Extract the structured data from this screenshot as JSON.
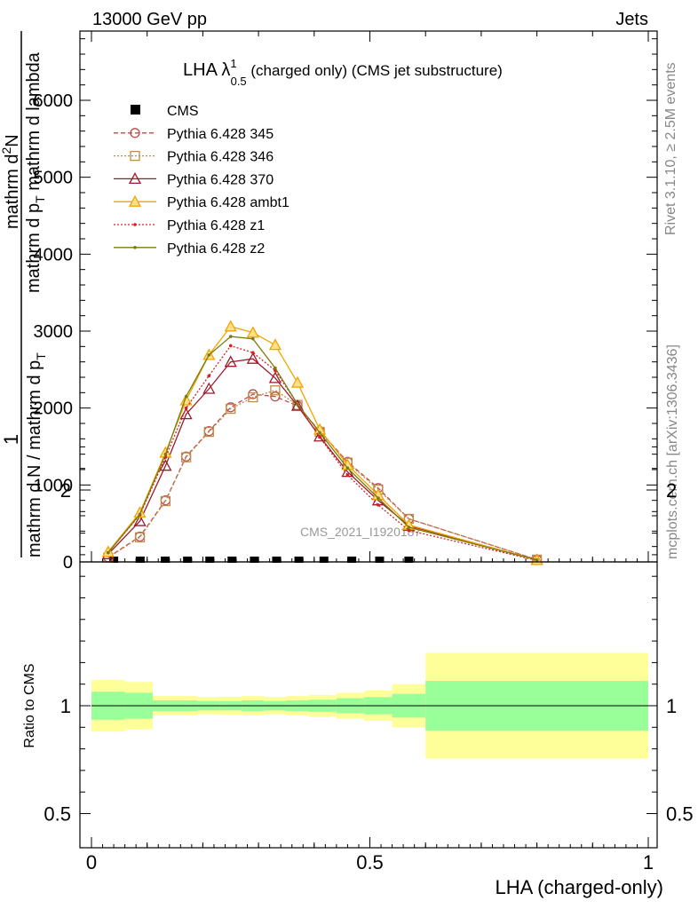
{
  "header": {
    "energy_label": "13000 GeV pp",
    "process_label": "Jets"
  },
  "side_labels": {
    "rivet": "Rivet 3.1.10, ≥ 2.5M events",
    "mcplots": "mcplots.cern.ch [arXiv:1306.3436]"
  },
  "watermark": "CMS_2021_I1920187",
  "chart_data": [
    {
      "type": "line",
      "panel": "main",
      "title": "LHA λ¹₀.₅ (charged only) (CMS jet substructure)",
      "title_parts": {
        "main": "LHA λ",
        "sup": "1",
        "sub": "0.5",
        "rest": " (charged only) (CMS jet substructure)"
      },
      "ylabel": "1 / mathrm d N / mathrm d p_T  ·  mathrm d²N / mathrm d p_T mathrm d lambda",
      "ylabel_parts": {
        "one": "1",
        "num": "mathrm d N / mathrm d p",
        "num_sub": "T",
        "top": "mathrm d",
        "top_sup": "2",
        "top_rest": "N",
        "bot": "mathrm d p",
        "bot_sub": "T",
        "bot_rest": " mathrm d lambda"
      },
      "xlim": [
        -0.02,
        1.02
      ],
      "ylim": [
        0,
        6900
      ],
      "yticks": [
        0,
        1000,
        2000,
        3000,
        4000,
        5000,
        6000
      ],
      "ytick_labels": [
        "0",
        "1000",
        "2000",
        "3000",
        "4000",
        "5000",
        "6000"
      ],
      "legend_position": "top-left",
      "series": [
        {
          "name": "CMS",
          "style": "data",
          "color": "#000000",
          "x": [
            0.04,
            0.0875,
            0.1325,
            0.1725,
            0.2125,
            0.2525,
            0.2925,
            0.3325,
            0.3725,
            0.4175,
            0.4675,
            0.5175,
            0.57
          ],
          "y": [
            0,
            0,
            0,
            0,
            0,
            0,
            0,
            0,
            0,
            0,
            0,
            0,
            0
          ]
        },
        {
          "name": "Pythia 6.428 345",
          "style": "dashed",
          "marker": "circle",
          "color": "#b84d4d",
          "x": [
            0.03,
            0.087,
            0.133,
            0.17,
            0.211,
            0.25,
            0.29,
            0.33,
            0.37,
            0.41,
            0.46,
            0.515,
            0.57,
            0.8
          ],
          "y": [
            60,
            330,
            800,
            1370,
            1700,
            2010,
            2180,
            2150,
            2030,
            1700,
            1300,
            960,
            560,
            30
          ]
        },
        {
          "name": "Pythia 6.428 346",
          "style": "dotted",
          "marker": "square",
          "color": "#c08a4a",
          "x": [
            0.03,
            0.087,
            0.133,
            0.17,
            0.211,
            0.25,
            0.29,
            0.33,
            0.37,
            0.41,
            0.46,
            0.515,
            0.57,
            0.8
          ],
          "y": [
            55,
            320,
            790,
            1360,
            1690,
            1990,
            2140,
            2230,
            2040,
            1690,
            1290,
            940,
            560,
            30
          ]
        },
        {
          "name": "Pythia 6.428 370",
          "style": "solid",
          "marker": "triangle",
          "color": "#9b1c2c",
          "x": [
            0.03,
            0.087,
            0.133,
            0.17,
            0.211,
            0.25,
            0.29,
            0.33,
            0.37,
            0.41,
            0.46,
            0.515,
            0.57,
            0.8
          ],
          "y": [
            100,
            530,
            1250,
            1920,
            2250,
            2600,
            2640,
            2390,
            2030,
            1630,
            1170,
            800,
            470,
            25
          ]
        },
        {
          "name": "Pythia 6.428 ambt1",
          "style": "solid",
          "marker": "triangle-filled",
          "color": "#f0a500",
          "x": [
            0.03,
            0.087,
            0.133,
            0.17,
            0.211,
            0.25,
            0.29,
            0.33,
            0.37,
            0.41,
            0.46,
            0.515,
            0.57,
            0.8
          ],
          "y": [
            130,
            640,
            1420,
            2100,
            2690,
            3060,
            2980,
            2820,
            2330,
            1720,
            1260,
            870,
            480,
            25
          ]
        },
        {
          "name": "Pythia 6.428 z1",
          "style": "dotted",
          "marker": "dot",
          "color": "#d62020",
          "x": [
            0.03,
            0.087,
            0.133,
            0.17,
            0.211,
            0.25,
            0.29,
            0.33,
            0.37,
            0.41,
            0.46,
            0.515,
            0.57,
            0.8
          ],
          "y": [
            120,
            610,
            1360,
            2000,
            2420,
            2810,
            2720,
            2490,
            2050,
            1620,
            1130,
            740,
            410,
            20
          ]
        },
        {
          "name": "Pythia 6.428 z2",
          "style": "solid",
          "marker": "dot",
          "color": "#7a7a10",
          "x": [
            0.03,
            0.087,
            0.133,
            0.17,
            0.211,
            0.25,
            0.29,
            0.33,
            0.37,
            0.41,
            0.46,
            0.515,
            0.57,
            0.8
          ],
          "y": [
            120,
            620,
            1400,
            2150,
            2690,
            2930,
            2900,
            2520,
            2050,
            1680,
            1220,
            830,
            450,
            25
          ]
        }
      ]
    },
    {
      "type": "area",
      "panel": "ratio",
      "ylabel": "Ratio to CMS",
      "xlabel": "LHA (charged-only)",
      "xlim": [
        -0.02,
        1.02
      ],
      "ylim": [
        0.4,
        2.3
      ],
      "xticks": [
        0,
        0.5,
        1
      ],
      "xtick_labels": [
        "0",
        "0.5",
        "1"
      ],
      "yticks": [
        0.5,
        1,
        2
      ],
      "ytick_labels": [
        "0.5",
        "1",
        "2"
      ],
      "reference_line": 1,
      "bins": [
        {
          "x0": 0.0,
          "x1": 0.06,
          "stat_lo": 0.935,
          "stat_hi": 1.065,
          "tot_lo": 0.88,
          "tot_hi": 1.12
        },
        {
          "x0": 0.06,
          "x1": 0.11,
          "stat_lo": 0.94,
          "stat_hi": 1.06,
          "tot_lo": 0.89,
          "tot_hi": 1.11
        },
        {
          "x0": 0.11,
          "x1": 0.15,
          "stat_lo": 0.975,
          "stat_hi": 1.025,
          "tot_lo": 0.955,
          "tot_hi": 1.045
        },
        {
          "x0": 0.15,
          "x1": 0.19,
          "stat_lo": 0.975,
          "stat_hi": 1.025,
          "tot_lo": 0.955,
          "tot_hi": 1.045
        },
        {
          "x0": 0.19,
          "x1": 0.23,
          "stat_lo": 0.978,
          "stat_hi": 1.022,
          "tot_lo": 0.96,
          "tot_hi": 1.04
        },
        {
          "x0": 0.23,
          "x1": 0.27,
          "stat_lo": 0.978,
          "stat_hi": 1.022,
          "tot_lo": 0.958,
          "tot_hi": 1.042
        },
        {
          "x0": 0.27,
          "x1": 0.31,
          "stat_lo": 0.975,
          "stat_hi": 1.025,
          "tot_lo": 0.955,
          "tot_hi": 1.045
        },
        {
          "x0": 0.31,
          "x1": 0.35,
          "stat_lo": 0.978,
          "stat_hi": 1.022,
          "tot_lo": 0.96,
          "tot_hi": 1.04
        },
        {
          "x0": 0.35,
          "x1": 0.39,
          "stat_lo": 0.975,
          "stat_hi": 1.025,
          "tot_lo": 0.955,
          "tot_hi": 1.045
        },
        {
          "x0": 0.39,
          "x1": 0.44,
          "stat_lo": 0.972,
          "stat_hi": 1.028,
          "tot_lo": 0.95,
          "tot_hi": 1.05
        },
        {
          "x0": 0.44,
          "x1": 0.49,
          "stat_lo": 0.965,
          "stat_hi": 1.035,
          "tot_lo": 0.94,
          "tot_hi": 1.06
        },
        {
          "x0": 0.49,
          "x1": 0.54,
          "stat_lo": 0.96,
          "stat_hi": 1.04,
          "tot_lo": 0.93,
          "tot_hi": 1.07
        },
        {
          "x0": 0.54,
          "x1": 0.6,
          "stat_lo": 0.945,
          "stat_hi": 1.055,
          "tot_lo": 0.9,
          "tot_hi": 1.1
        },
        {
          "x0": 0.6,
          "x1": 1.0,
          "stat_lo": 0.885,
          "stat_hi": 1.115,
          "tot_lo": 0.755,
          "tot_hi": 1.245
        }
      ],
      "band_colors": {
        "stat": "#99ff99",
        "total": "#ffff99"
      }
    }
  ]
}
